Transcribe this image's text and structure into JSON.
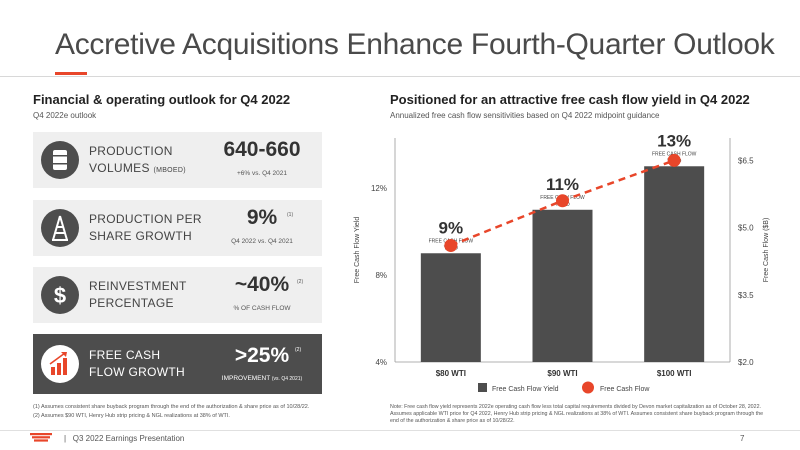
{
  "title": "Accretive Acquisitions Enhance Fourth-Quarter Outlook",
  "left": {
    "heading": "Financial & operating outlook for Q4 2022",
    "subheading": "Q4 2022e outlook",
    "cards": [
      {
        "label_line1": "PRODUCTION",
        "label_line2": "VOLUMES",
        "label_small": "(MBOED)",
        "value": "640-660",
        "note": "+6% vs. Q4 2021",
        "sup": "",
        "icon": "oil-barrel-icon"
      },
      {
        "label_line1": "PRODUCTION PER",
        "label_line2": "SHARE GROWTH",
        "label_small": "",
        "value": "9%",
        "note": "Q4 2022 vs. Q4 2021",
        "sup": "(1)",
        "icon": "oil-derrick-icon"
      },
      {
        "label_line1": "REINVESTMENT",
        "label_line2": "PERCENTAGE",
        "label_small": "",
        "value": "~40%",
        "note": "% OF CASH FLOW",
        "sup": "(2)",
        "icon": "dollar-sign-icon"
      },
      {
        "label_line1": "FREE CASH",
        "label_line2": "FLOW GROWTH",
        "label_small": "",
        "value": ">25%",
        "note": "IMPROVEMENT",
        "note_small": "(vs. Q4 2021)",
        "sup": "(2)",
        "icon": "growth-bars-icon"
      }
    ],
    "footnotes": [
      "(1) Assumes consistent share buyback program through the end of the authorization & share price as of 10/28/22.",
      "(2) Assumes $90 WTI, Henry Hub strip pricing & NGL realizations at 38% of WTI."
    ]
  },
  "right": {
    "heading": "Positioned for an attractive free cash flow yield in Q4 2022",
    "subheading": "Annualized free cash flow sensitivities based on Q4 2022 midpoint guidance",
    "footnote": "Note: Free cash flow yield represents 2022e operating cash flow less total capital requirements divided by Devon market capitalization as of October 28, 2022. Assumes applicable WTI price for Q4 2022, Henry Hub strip pricing & NGL realizations at 38% of WTI. Assumes consistent share buyback program through the end of the authorization & share price as of 10/28/22."
  },
  "chart_data": {
    "type": "bar",
    "categories": [
      "$80 WTI",
      "$90 WTI",
      "$100 WTI"
    ],
    "series": [
      {
        "name": "Free Cash Flow Yield",
        "type": "bar",
        "axis": "left",
        "values": [
          9,
          11,
          13
        ],
        "color": "#4d4d4d"
      },
      {
        "name": "Free Cash Flow",
        "type": "line",
        "axis": "right",
        "values": [
          4.6,
          5.6,
          6.5
        ],
        "color": "#e8462a"
      }
    ],
    "data_labels": [
      "9%",
      "11%",
      "13%"
    ],
    "data_label_caption_line1": "FREE CASH FLOW",
    "data_label_caption_line2": "YIELD",
    "ylabel": "Free Cash Flow Yield",
    "ylim": [
      4,
      14.3
    ],
    "yticks": [
      4,
      8,
      12
    ],
    "ytick_labels": [
      "4%",
      "8%",
      "12%"
    ],
    "y2label": "Free Cash Flow ($B)",
    "y2lim": [
      2.0,
      7.0
    ],
    "y2ticks": [
      2.0,
      3.5,
      5.0,
      6.5
    ],
    "y2tick_labels": [
      "$2.0",
      "$3.5",
      "$5.0",
      "$6.5"
    ],
    "legend_position": "bottom"
  },
  "footer": {
    "presentation": "Q3 2022 Earnings Presentation",
    "page": "7"
  },
  "colors": {
    "accent": "#e8462a",
    "dark": "#4d4d4d",
    "card": "#efefef"
  }
}
